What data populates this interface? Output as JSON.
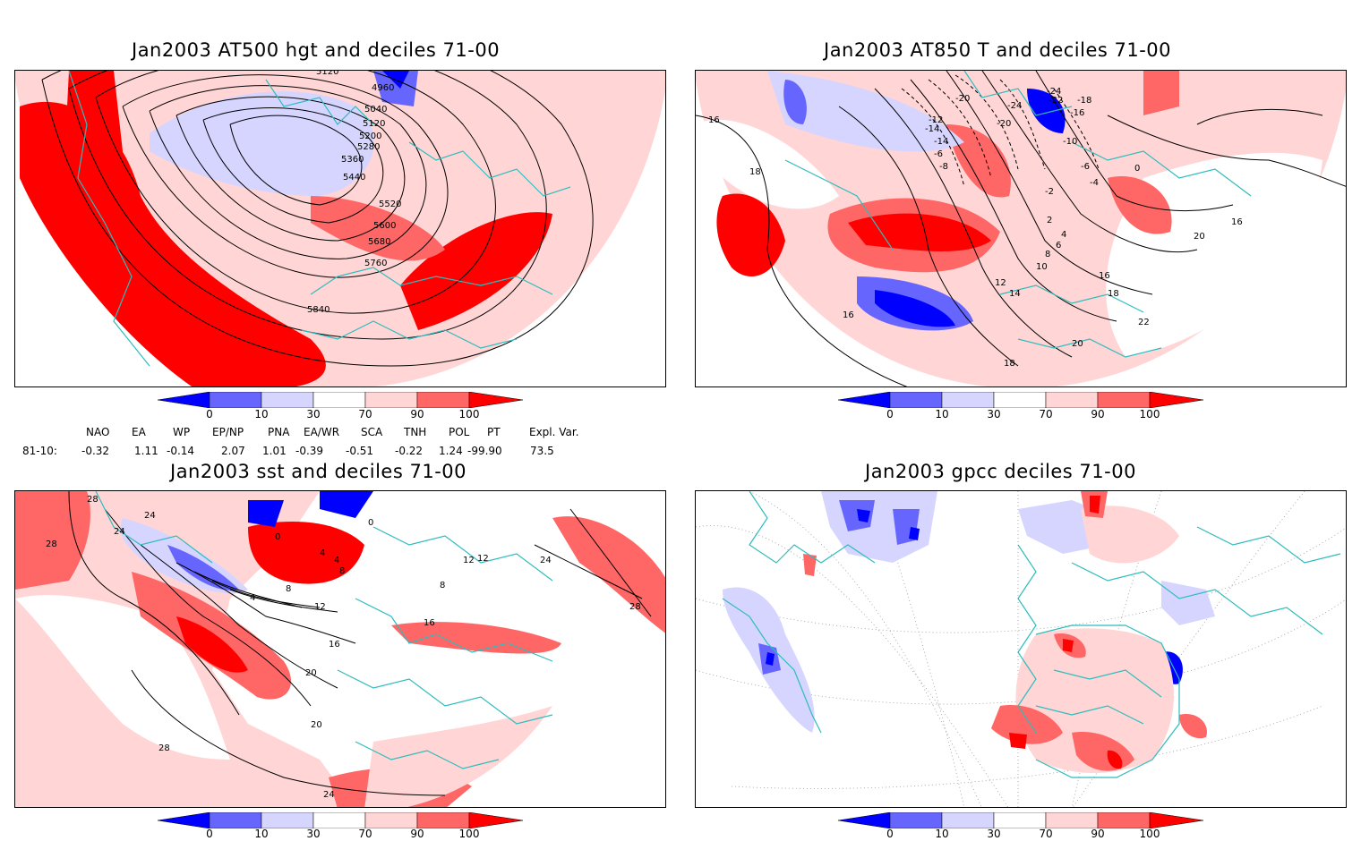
{
  "panels": [
    {
      "title": "Jan2003 AT500 hgt and deciles 71-00",
      "contour_labels": [
        "5120",
        "4960",
        "5040",
        "5120",
        "5200",
        "5280",
        "5360",
        "5440",
        "5520",
        "5600",
        "5680",
        "5760",
        "5840"
      ]
    },
    {
      "title": "Jan2003 AT850 T and deciles 71-00",
      "contour_labels": [
        "16",
        "18",
        "-20",
        "-24",
        "-22",
        "-18",
        "-16",
        "-24",
        "-20",
        "-14",
        "-10",
        "-14",
        "-12",
        "-8",
        "-6",
        "-6",
        "-4",
        "0",
        "-2",
        "2",
        "4",
        "6",
        "8",
        "10",
        "12",
        "14",
        "16",
        "18",
        "16",
        "20",
        "22",
        "20",
        "18",
        "16"
      ]
    },
    {
      "title": "Jan2003 sst and deciles 71-00",
      "contour_labels": [
        "28",
        "28",
        "24",
        "24",
        "0",
        "0",
        "4",
        "4",
        "8",
        "4",
        "8",
        "12",
        "16",
        "20",
        "20",
        "16",
        "12",
        "8",
        "24",
        "28",
        "28",
        "24",
        "12"
      ]
    },
    {
      "title": "Jan2003 gpcc deciles 71-00",
      "contour_labels": []
    }
  ],
  "colorbar": {
    "labels": [
      "0",
      "10",
      "30",
      "70",
      "90",
      "100"
    ],
    "colors": {
      "deep_blue": "#0000ff",
      "mid_blue": "#6666ff",
      "light_blue": "#d5d5ff",
      "white": "#ffffff",
      "light_red": "#ffd5d5",
      "mid_red": "#ff6666",
      "deep_red": "#ff0000"
    }
  },
  "indices": {
    "headers": [
      "NAO",
      "EA",
      "WP",
      "EP/NP",
      "PNA",
      "EA/WR",
      "SCA",
      "TNH",
      "POL",
      "PT",
      "Expl. Var."
    ],
    "row_label": "81-10:",
    "values": [
      "-0.32",
      "1.11",
      "-0.14",
      "2.07",
      "1.01",
      "-0.39",
      "-0.51",
      "-0.22",
      "1.24",
      "-99.90",
      "73.5"
    ]
  },
  "map_colors": {
    "coast": "#2fbcbc",
    "contour": "#000000",
    "grid": "#999999"
  }
}
